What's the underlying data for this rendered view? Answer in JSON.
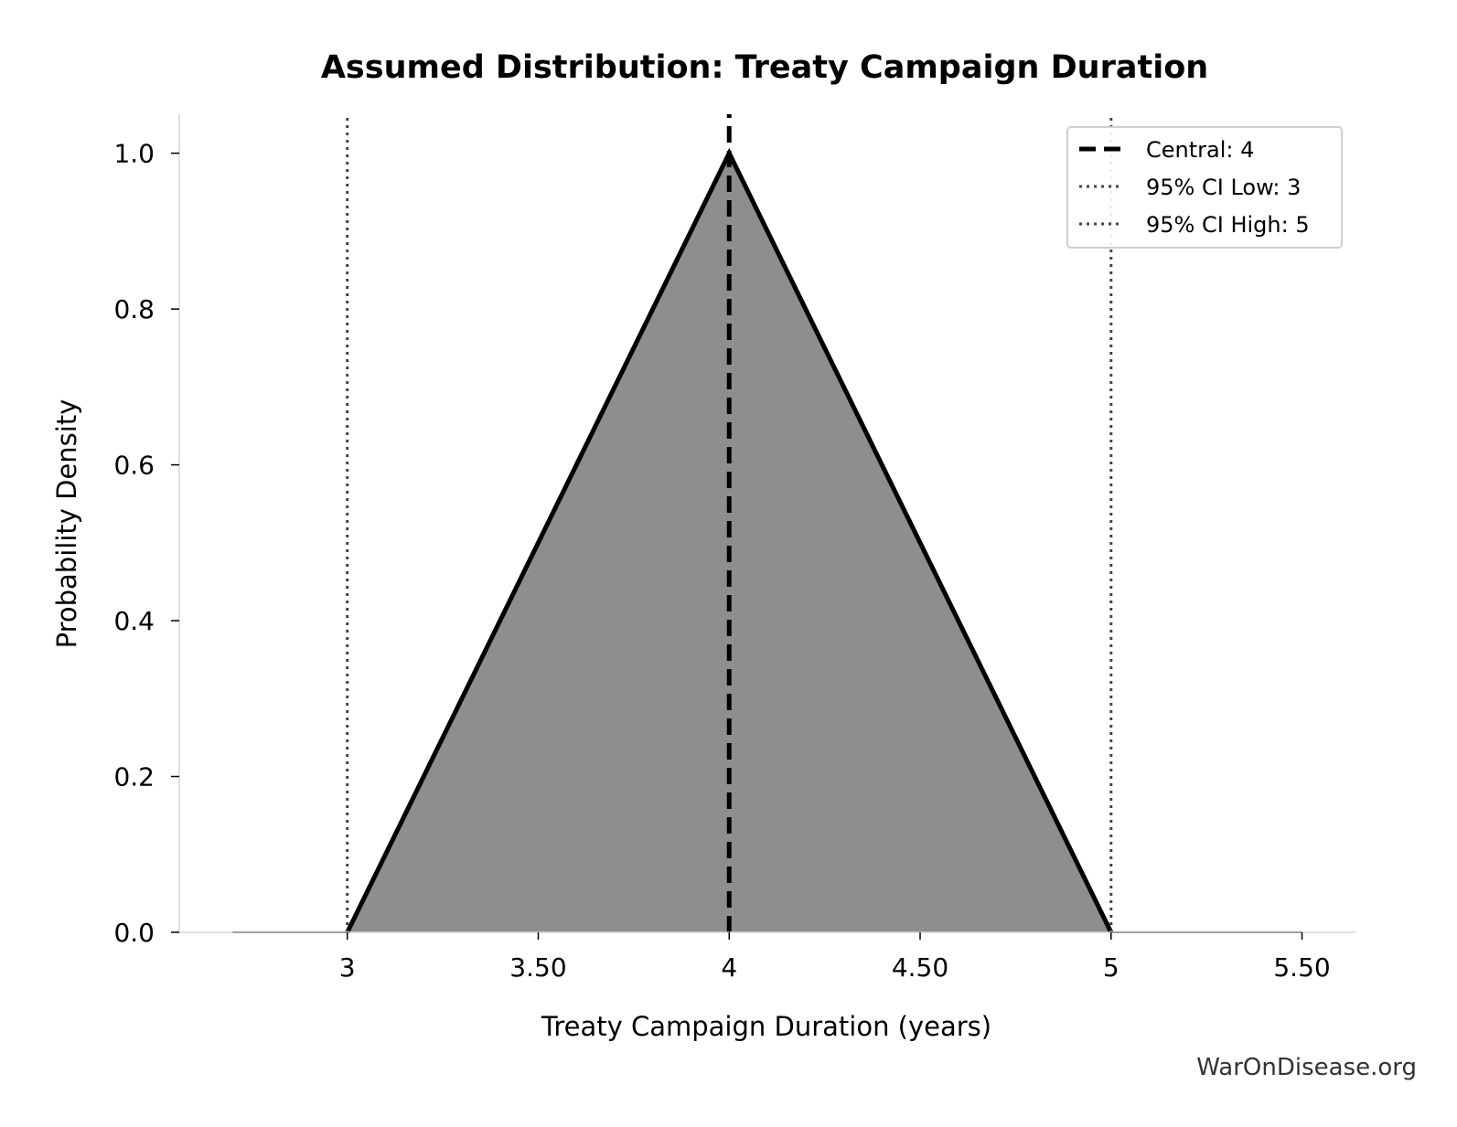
{
  "chart_data": {
    "type": "area",
    "title": "Assumed Distribution: Treaty Campaign Duration",
    "xlabel": "Treaty Campaign Duration (years)",
    "ylabel": "Probability Density",
    "xlim": [
      2.56,
      5.64
    ],
    "ylim": [
      0,
      1.05
    ],
    "x_ticks": [
      3,
      3.5,
      4,
      4.5,
      5,
      5.5
    ],
    "x_tick_labels": [
      "3",
      "3.50",
      "4",
      "4.50",
      "5",
      "5.50"
    ],
    "y_ticks": [
      0,
      0.2,
      0.4,
      0.6,
      0.8,
      1.0
    ],
    "y_tick_labels": [
      "0.0",
      "0.2",
      "0.4",
      "0.6",
      "0.8",
      "1.0"
    ],
    "grid": false,
    "series": [
      {
        "values": [
          {
            "x": 2.7,
            "y": 0
          },
          {
            "x": 3.0,
            "y": 0
          },
          {
            "x": 4.0,
            "y": 1.0
          },
          {
            "x": 5.0,
            "y": 0
          },
          {
            "x": 5.5,
            "y": 0
          }
        ],
        "fill_color": "#8e8e8e",
        "line_color": "#000000"
      }
    ],
    "reference_lines": [
      {
        "label": "Central: 4",
        "x": 4,
        "style": "dashed",
        "color": "#000000"
      },
      {
        "label": "95% CI Low: 3",
        "x": 3,
        "style": "dotted",
        "color": "#444444"
      },
      {
        "label": "95% CI High: 5",
        "x": 5,
        "style": "dotted",
        "color": "#444444"
      }
    ],
    "legend_position": "top-right"
  },
  "watermark": "WarOnDisease.org"
}
